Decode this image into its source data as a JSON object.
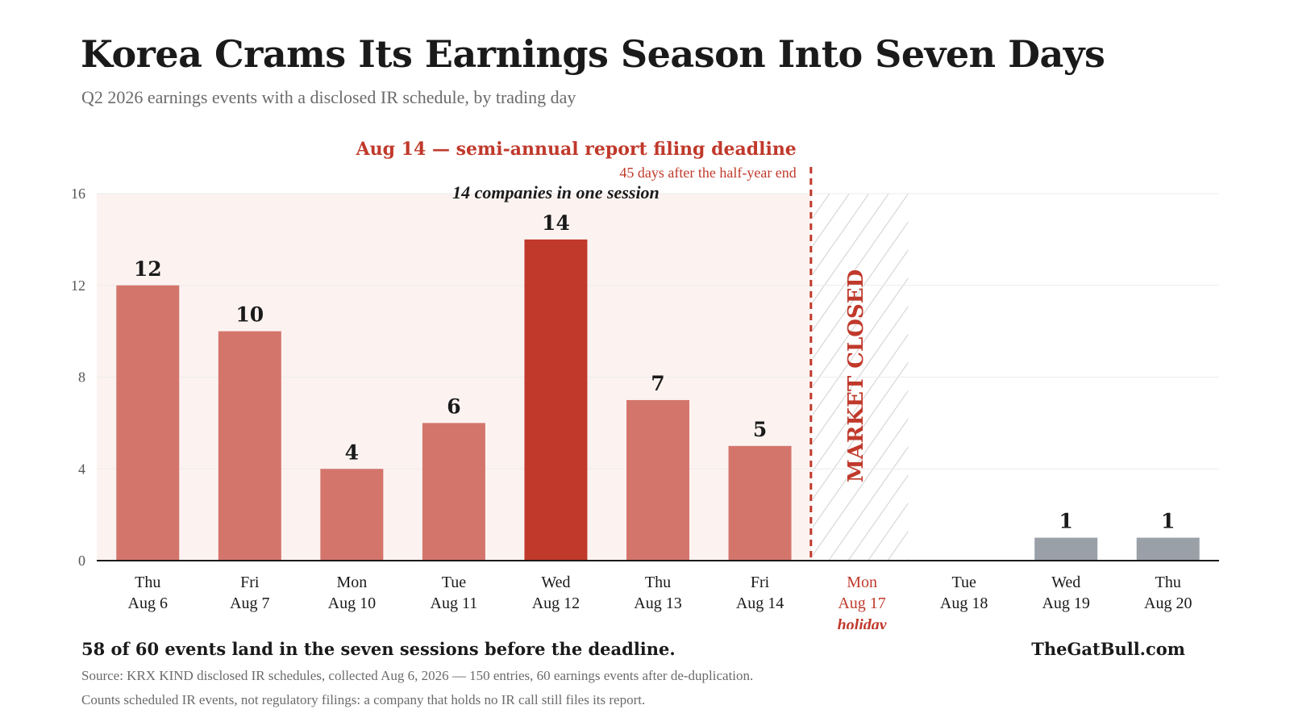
{
  "title": "Korea Crams Its Earnings Season Into Seven Days",
  "subtitle": "Q2 2026 earnings events with a disclosed IR schedule, by trading day",
  "takeaway": "58 of 60 events land in the seven sessions before the deadline.",
  "brand": "TheGatBull.com",
  "source": "Source: KRX KIND disclosed IR schedules, collected Aug 6, 2026 — 150 entries, 60 earnings events after de-duplication.",
  "note": "Counts scheduled IR events, not regulatory filings: a company that holds no IR call still files its report.",
  "colors": {
    "pre_deadline": "#d4756c",
    "peak": "#c0392b",
    "post_deadline": "#9aa0a8",
    "accent": "#c0392b",
    "window_shade": "#fcf3f1"
  },
  "chart_data": {
    "type": "bar",
    "categories": [
      {
        "day": "Thu",
        "date": "Aug 6"
      },
      {
        "day": "Fri",
        "date": "Aug 7"
      },
      {
        "day": "Mon",
        "date": "Aug 10"
      },
      {
        "day": "Tue",
        "date": "Aug 11"
      },
      {
        "day": "Wed",
        "date": "Aug 12"
      },
      {
        "day": "Thu",
        "date": "Aug 13"
      },
      {
        "day": "Fri",
        "date": "Aug 14"
      },
      {
        "day": "Mon",
        "date": "Aug 17",
        "note": "holiday"
      },
      {
        "day": "Tue",
        "date": "Aug 18"
      },
      {
        "day": "Wed",
        "date": "Aug 19"
      },
      {
        "day": "Thu",
        "date": "Aug 20"
      }
    ],
    "values": [
      12,
      10,
      4,
      6,
      14,
      7,
      5,
      null,
      null,
      1,
      1
    ],
    "bar_groups": [
      "pre_deadline",
      "pre_deadline",
      "pre_deadline",
      "pre_deadline",
      "peak",
      "pre_deadline",
      "pre_deadline",
      null,
      null,
      "post_deadline",
      "post_deadline"
    ],
    "ylim": [
      0,
      16
    ],
    "yticks": [
      0,
      4,
      8,
      12,
      16
    ],
    "grid": true,
    "annotations": {
      "deadline_title": "Aug 14 — semi-annual report filing deadline",
      "deadline_sub": "45 days after the half-year end",
      "peak_note": "14 companies in one session",
      "market_closed": "MARKET CLOSED"
    }
  }
}
